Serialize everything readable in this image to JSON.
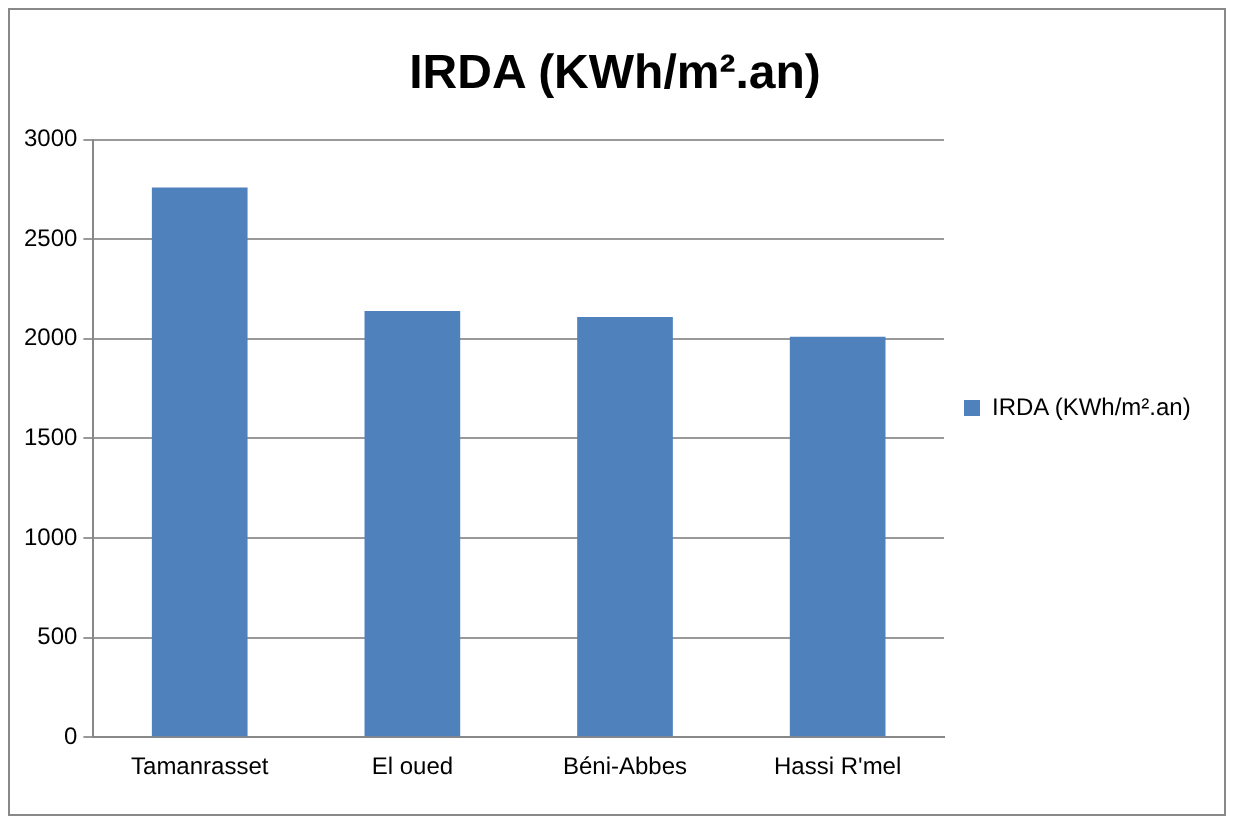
{
  "chart_data": {
    "type": "bar",
    "title": "IRDA (KWh/m².an)",
    "categories": [
      "Tamanrasset",
      "El oued",
      "Béni-Abbes",
      "Hassi R'mel"
    ],
    "series": [
      {
        "name": "IRDA (KWh/m².an)",
        "color": "#4f81bd",
        "values": [
          2760,
          2140,
          2110,
          2010
        ]
      }
    ],
    "ylim": [
      0,
      3000
    ],
    "yticks": [
      0,
      500,
      1000,
      1500,
      2000,
      2500,
      3000
    ],
    "grid": "y",
    "legend": "right"
  }
}
